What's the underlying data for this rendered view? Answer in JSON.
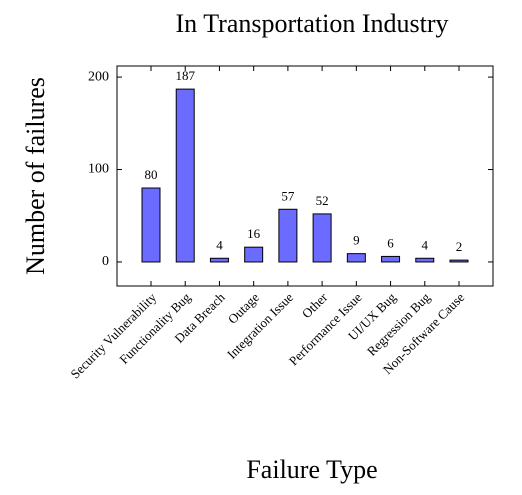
{
  "chart_data": {
    "type": "bar",
    "title": "In Transportation Industry",
    "xlabel": "Failure Type",
    "ylabel": "Number of failures",
    "categories": [
      "Security Vulnerability",
      "Functionality Bug",
      "Data Breach",
      "Outage",
      "Integration Issue",
      "Other",
      "Performance Issue",
      "UI/UX Bug",
      "Regression Bug",
      "Non-Software Cause"
    ],
    "values": [
      80,
      187,
      4,
      16,
      57,
      52,
      9,
      6,
      4,
      2
    ],
    "color": "#6b6bff",
    "ylim": [
      -26,
      212
    ],
    "yticks": [
      0,
      100,
      200
    ],
    "grid": false
  }
}
